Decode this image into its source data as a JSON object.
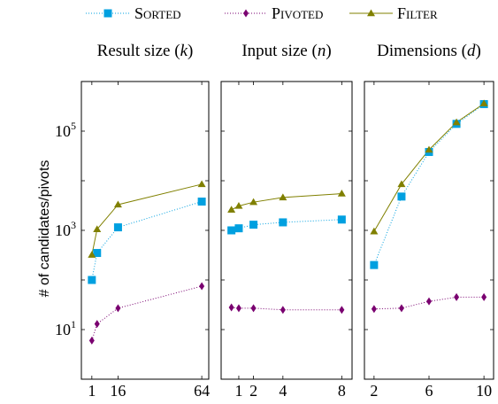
{
  "chart_data": {
    "type": "line",
    "ylabel": "# of candidates/pivots",
    "yscale": "log",
    "ylim": [
      1,
      1000000
    ],
    "y_ticks": [
      {
        "value": 10,
        "label_base": "10",
        "label_exp": "1"
      },
      {
        "value": 1000,
        "label_base": "10",
        "label_exp": "3"
      },
      {
        "value": 100000,
        "label_base": "10",
        "label_exp": "5"
      }
    ],
    "legend": {
      "placement": "top",
      "entries": [
        {
          "name": "Sorted",
          "color": "#00a0e0",
          "marker": "square",
          "line": "dotted"
        },
        {
          "name": "Pivoted",
          "color": "#7a0070",
          "marker": "diamond",
          "line": "dotted"
        },
        {
          "name": "Filter",
          "color": "#808000",
          "marker": "triangle",
          "line": "solid"
        }
      ]
    },
    "panels": [
      {
        "title_text": "Result size (",
        "title_var": "k",
        "title_end": ")",
        "xlim": [
          -5,
          68
        ],
        "x_ticks": [
          "1",
          "16",
          "64"
        ],
        "x_tick_values": [
          1,
          16,
          64
        ],
        "series": [
          {
            "name": "Sorted",
            "x": [
              1,
              4,
              16,
              64
            ],
            "y": [
              100,
              350,
              1150,
              3800
            ]
          },
          {
            "name": "Pivoted",
            "x": [
              1,
              4,
              16,
              64
            ],
            "y": [
              6,
              13,
              27,
              75
            ]
          },
          {
            "name": "Filter",
            "x": [
              1,
              4,
              16,
              64
            ],
            "y": [
              320,
              1050,
              3300,
              8500
            ]
          }
        ]
      },
      {
        "title_text": "Input size (",
        "title_var": "n",
        "title_end": ")",
        "xlim": [
          -0.2,
          8.7
        ],
        "x_ticks": [
          "1",
          "2",
          "4",
          "8"
        ],
        "x_tick_values": [
          1,
          2,
          4,
          8
        ],
        "series": [
          {
            "name": "Sorted",
            "x": [
              0.5,
              1,
              2,
              4,
              8
            ],
            "y": [
              1000,
              1100,
              1300,
              1450,
              1650
            ]
          },
          {
            "name": "Pivoted",
            "x": [
              0.5,
              1,
              2,
              4,
              8
            ],
            "y": [
              28,
              27,
              27,
              25,
              25
            ]
          },
          {
            "name": "Filter",
            "x": [
              0.5,
              1,
              2,
              4,
              8
            ],
            "y": [
              2600,
              3100,
              3700,
              4600,
              5500
            ]
          }
        ]
      },
      {
        "title_text": "Dimensions (",
        "title_var": "d",
        "title_end": ")",
        "xlim": [
          1.3,
          10.7
        ],
        "x_ticks": [
          "2",
          "6",
          "10"
        ],
        "x_tick_values": [
          2,
          6,
          10
        ],
        "series": [
          {
            "name": "Sorted",
            "x": [
              2,
              4,
              6,
              8,
              10
            ],
            "y": [
              200,
              4800,
              38000,
              140000,
              350000
            ]
          },
          {
            "name": "Pivoted",
            "x": [
              2,
              4,
              6,
              8,
              10
            ],
            "y": [
              26,
              27,
              37,
              45,
              45
            ]
          },
          {
            "name": "Filter",
            "x": [
              2,
              4,
              6,
              8,
              10
            ],
            "y": [
              950,
              8500,
              42000,
              150000,
              360000
            ]
          }
        ]
      }
    ]
  }
}
